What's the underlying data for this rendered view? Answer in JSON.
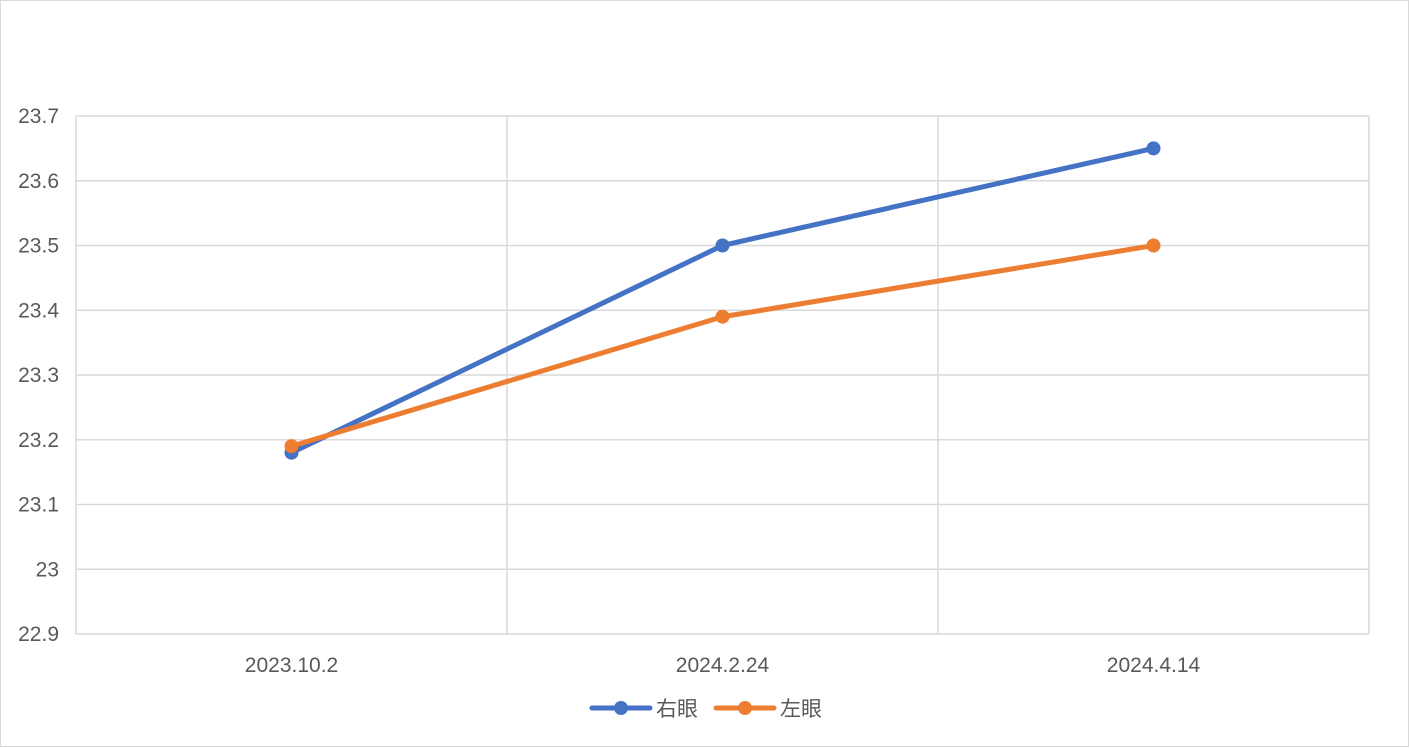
{
  "chart_data": {
    "type": "line",
    "title": "",
    "xlabel": "",
    "ylabel": "",
    "categories": [
      "2023.10.2",
      "2024.2.24",
      "2024.4.14"
    ],
    "ylim": [
      22.9,
      23.7
    ],
    "ytick_step": 0.1,
    "yticks": [
      "22.9",
      "23",
      "23.1",
      "23.2",
      "23.3",
      "23.4",
      "23.5",
      "23.6",
      "23.7"
    ],
    "grid": true,
    "legend_position": "bottom",
    "series": [
      {
        "name": "右眼",
        "color": "#4472c4",
        "values": [
          23.18,
          23.5,
          23.65
        ]
      },
      {
        "name": "左眼",
        "color": "#ed7d31",
        "values": [
          23.19,
          23.39,
          23.5
        ]
      }
    ]
  }
}
